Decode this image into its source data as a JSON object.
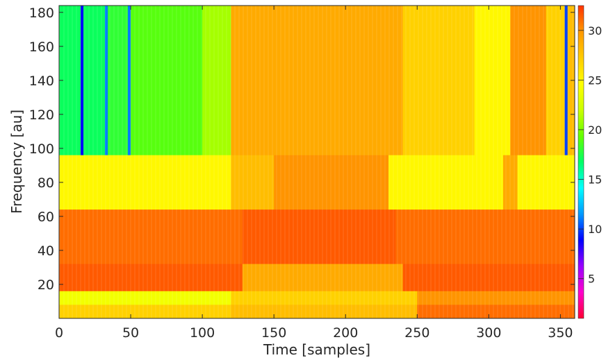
{
  "chart_data": {
    "type": "heatmap",
    "title": "",
    "xlabel": "Time [samples]",
    "ylabel": "Frequency [au]",
    "xlim": [
      0,
      360
    ],
    "ylim": [
      0,
      184
    ],
    "x_ticks": [
      0,
      50,
      100,
      150,
      200,
      250,
      300,
      350
    ],
    "x_tick_labels": [
      "0",
      "50",
      "100",
      "150",
      "200",
      "250",
      "300",
      "350"
    ],
    "y_ticks": [
      20,
      40,
      60,
      80,
      100,
      120,
      140,
      160,
      180
    ],
    "y_tick_labels": [
      "20",
      "40",
      "60",
      "80",
      "100",
      "120",
      "140",
      "160",
      "180"
    ],
    "colorbar": {
      "limits": [
        1,
        32.5
      ],
      "ticks": [
        5,
        10,
        15,
        20,
        25,
        30
      ],
      "tick_labels": [
        "5",
        "10",
        "15",
        "20",
        "25",
        "30"
      ],
      "colormap": [
        "#ff0033",
        "#ff00cc",
        "#9900ff",
        "#0000ff",
        "#0099ff",
        "#00ffff",
        "#00ff66",
        "#66ff00",
        "#ccff00",
        "#ffff00",
        "#ffcc00",
        "#ff9900",
        "#ff3300"
      ]
    },
    "grid": false,
    "bands": [
      {
        "y_range": [
          96,
          184
        ],
        "segments": [
          {
            "x": [
              0,
              15
            ],
            "value": 17
          },
          {
            "x": [
              15,
              17
            ],
            "value": 9
          },
          {
            "x": [
              17,
              32
            ],
            "value": 17
          },
          {
            "x": [
              32,
              34
            ],
            "value": 11
          },
          {
            "x": [
              34,
              48
            ],
            "value": 18
          },
          {
            "x": [
              48,
              50
            ],
            "value": 11
          },
          {
            "x": [
              50,
              100
            ],
            "value": 19
          },
          {
            "x": [
              100,
              120
            ],
            "value": 21
          },
          {
            "x": [
              120,
              240
            ],
            "value": 29
          },
          {
            "x": [
              240,
              290
            ],
            "value": 27
          },
          {
            "x": [
              290,
              315
            ],
            "value": 25
          },
          {
            "x": [
              315,
              340
            ],
            "value": 30
          },
          {
            "x": [
              340,
              353
            ],
            "value": 27
          },
          {
            "x": [
              353,
              355
            ],
            "value": 10
          },
          {
            "x": [
              355,
              360
            ],
            "value": 28
          }
        ]
      },
      {
        "y_range": [
          64,
          96
        ],
        "segments": [
          {
            "x": [
              0,
              120
            ],
            "value": 25
          },
          {
            "x": [
              120,
              150
            ],
            "value": 28
          },
          {
            "x": [
              150,
              230
            ],
            "value": 30
          },
          {
            "x": [
              230,
              310
            ],
            "value": 25
          },
          {
            "x": [
              310,
              320
            ],
            "value": 29
          },
          {
            "x": [
              320,
              360
            ],
            "value": 25
          }
        ]
      },
      {
        "y_range": [
          32,
          64
        ],
        "segments": [
          {
            "x": [
              0,
              128
            ],
            "value": 31
          },
          {
            "x": [
              128,
              235
            ],
            "value": 31.5
          },
          {
            "x": [
              235,
              360
            ],
            "value": 31
          }
        ]
      },
      {
        "y_range": [
          16,
          32
        ],
        "segments": [
          {
            "x": [
              0,
              128
            ],
            "value": 31.5
          },
          {
            "x": [
              128,
              240
            ],
            "value": 29
          },
          {
            "x": [
              240,
              360
            ],
            "value": 31.5
          }
        ]
      },
      {
        "y_range": [
          8,
          16
        ],
        "segments": [
          {
            "x": [
              0,
              120
            ],
            "value": 24
          },
          {
            "x": [
              120,
              250
            ],
            "value": 27
          },
          {
            "x": [
              250,
              360
            ],
            "value": 30
          }
        ]
      },
      {
        "y_range": [
          0,
          8
        ],
        "segments": [
          {
            "x": [
              0,
              120
            ],
            "value": 27
          },
          {
            "x": [
              120,
              250
            ],
            "value": 28
          },
          {
            "x": [
              250,
              360
            ],
            "value": 31
          }
        ]
      }
    ]
  }
}
